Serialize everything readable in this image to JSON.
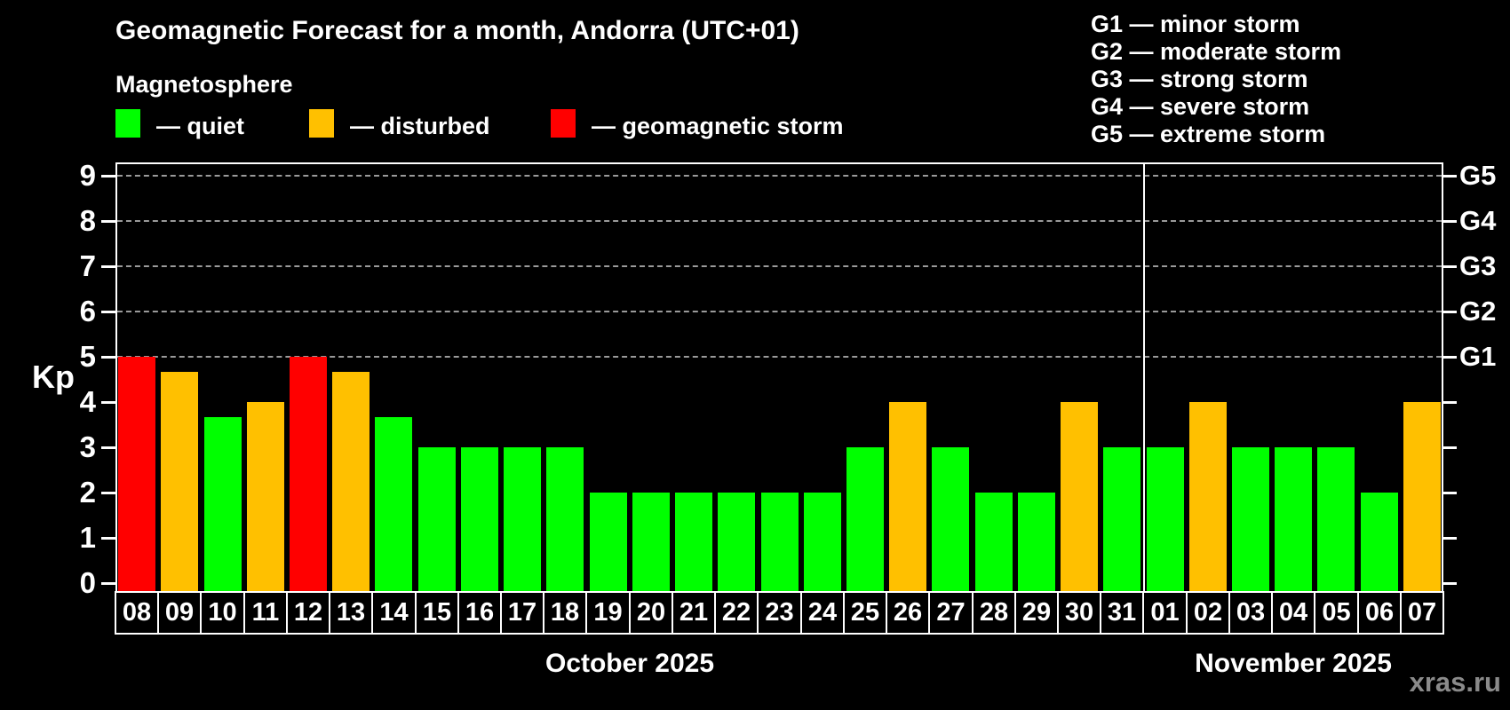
{
  "title": "Geomagnetic Forecast for a month, Andorra (UTC+01)",
  "subtitle": "Magnetosphere",
  "legend": {
    "quiet_label": "— quiet",
    "disturbed_label": "— disturbed",
    "storm_label": "— geomagnetic storm"
  },
  "g_scale_legend": [
    "G1 — minor storm",
    "G2 — moderate storm",
    "G3 — strong storm",
    "G4 — severe storm",
    "G5 — extreme storm"
  ],
  "watermark": "xras.ru",
  "colors": {
    "quiet": "#00ff00",
    "disturbed": "#ffc000",
    "storm": "#ff0000",
    "axis": "#ffffff",
    "grid": "#9a9a9a",
    "watermark_gray": "#8a8a8a"
  },
  "chart_data": {
    "type": "bar",
    "title": "Geomagnetic Forecast for a month, Andorra (UTC+01)",
    "xlabel": "",
    "ylabel": "Kp",
    "ylim": [
      0,
      9
    ],
    "y_ticks": [
      0,
      1,
      2,
      3,
      4,
      5,
      6,
      7,
      8,
      9
    ],
    "gridlines_kp": [
      5,
      6,
      7,
      8,
      9
    ],
    "grid_style": "dashed",
    "legend_position": "top",
    "right_axis": [
      {
        "label": "G1",
        "kp": 5
      },
      {
        "label": "G2",
        "kp": 6
      },
      {
        "label": "G3",
        "kp": 7
      },
      {
        "label": "G4",
        "kp": 8
      },
      {
        "label": "G5",
        "kp": 9
      }
    ],
    "months": [
      {
        "label": "October 2025",
        "days": 24
      },
      {
        "label": "November 2025",
        "days": 7
      }
    ],
    "month_split_after_index": 23,
    "categories": [
      "08",
      "09",
      "10",
      "11",
      "12",
      "13",
      "14",
      "15",
      "16",
      "17",
      "18",
      "19",
      "20",
      "21",
      "22",
      "23",
      "24",
      "25",
      "26",
      "27",
      "28",
      "29",
      "30",
      "31",
      "01",
      "02",
      "03",
      "04",
      "05",
      "06",
      "07"
    ],
    "values": [
      5.0,
      4.67,
      3.67,
      4.0,
      5.0,
      4.67,
      3.67,
      3.0,
      3.0,
      3.0,
      3.0,
      2.0,
      2.0,
      2.0,
      2.0,
      2.0,
      2.0,
      3.0,
      4.0,
      3.0,
      2.0,
      2.0,
      4.0,
      3.0,
      3.0,
      4.0,
      3.0,
      3.0,
      3.0,
      2.0,
      4.0
    ],
    "statuses": [
      "storm",
      "disturbed",
      "quiet",
      "disturbed",
      "storm",
      "disturbed",
      "quiet",
      "quiet",
      "quiet",
      "quiet",
      "quiet",
      "quiet",
      "quiet",
      "quiet",
      "quiet",
      "quiet",
      "quiet",
      "quiet",
      "disturbed",
      "quiet",
      "quiet",
      "quiet",
      "disturbed",
      "quiet",
      "quiet",
      "disturbed",
      "quiet",
      "quiet",
      "quiet",
      "quiet",
      "disturbed"
    ]
  }
}
